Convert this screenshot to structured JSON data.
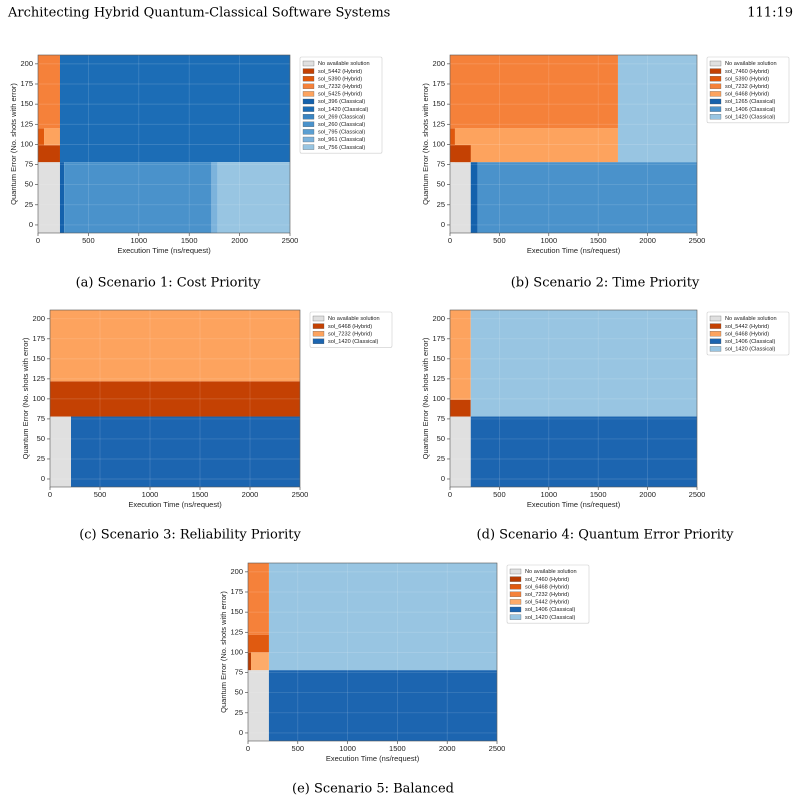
{
  "header": {
    "title": "Architecting Hybrid Quantum-Classical Software Systems",
    "page": "111:19"
  },
  "chart_data": [
    {
      "type": "region",
      "caption": "(a) Scenario 1: Cost Priority",
      "xlabel": "Execution Time (ns/request)",
      "ylabel": "Quantum Error (No. shots with error)",
      "xlim": [
        0,
        2500
      ],
      "ylim": [
        -10,
        211
      ],
      "xticks": [
        0,
        500,
        1000,
        1500,
        2000,
        2500
      ],
      "yticks": [
        0,
        25,
        50,
        75,
        100,
        125,
        150,
        175,
        200
      ],
      "grid": true,
      "series": [
        {
          "name": "No available solution",
          "color": "#e0e0e0"
        },
        {
          "name": "sol_5442 (Hybrid)",
          "color": "#c44103"
        },
        {
          "name": "sol_5390 (Hybrid)",
          "color": "#e0580c"
        },
        {
          "name": "sol_7232 (Hybrid)",
          "color": "#f5813a"
        },
        {
          "name": "sol_5425 (Hybrid)",
          "color": "#fda35e"
        },
        {
          "name": "sol_396 (Classical)",
          "color": "#1461ac"
        },
        {
          "name": "sol_1420 (Classical)",
          "color": "#1c6db6"
        },
        {
          "name": "sol_269 (Classical)",
          "color": "#3a85c3"
        },
        {
          "name": "sol_260 (Classical)",
          "color": "#4a92cb"
        },
        {
          "name": "sol_795 (Classical)",
          "color": "#5b9fd2"
        },
        {
          "name": "sol_961 (Classical)",
          "color": "#7cb3dc"
        },
        {
          "name": "sol_756 (Classical)",
          "color": "#98c5e2"
        }
      ],
      "regions": [
        {
          "series": 0,
          "x": [
            0,
            218
          ],
          "y": [
            -10,
            78
          ]
        },
        {
          "series": 1,
          "x": [
            0,
            218
          ],
          "y": [
            78,
            99
          ]
        },
        {
          "series": 2,
          "x": [
            0,
            60
          ],
          "y": [
            99,
            120
          ]
        },
        {
          "series": 4,
          "x": [
            60,
            218
          ],
          "y": [
            99,
            120
          ]
        },
        {
          "series": 3,
          "x": [
            0,
            218
          ],
          "y": [
            120,
            211
          ]
        },
        {
          "series": 6,
          "x": [
            218,
            2500
          ],
          "y": [
            78,
            211
          ]
        },
        {
          "series": 5,
          "x": [
            218,
            260
          ],
          "y": [
            -10,
            78
          ]
        },
        {
          "series": 8,
          "x": [
            260,
            1720
          ],
          "y": [
            -10,
            78
          ]
        },
        {
          "series": 10,
          "x": [
            1720,
            1780
          ],
          "y": [
            -10,
            78
          ]
        },
        {
          "series": 11,
          "x": [
            1780,
            2500
          ],
          "y": [
            -10,
            78
          ]
        }
      ]
    },
    {
      "type": "region",
      "caption": "(b) Scenario 2: Time Priority",
      "xlabel": "Execution Time (ns/request)",
      "ylabel": "Quantum Error (No. shots with error)",
      "xlim": [
        0,
        2500
      ],
      "ylim": [
        -10,
        211
      ],
      "xticks": [
        0,
        500,
        1000,
        1500,
        2000,
        2500
      ],
      "yticks": [
        0,
        25,
        50,
        75,
        100,
        125,
        150,
        175,
        200
      ],
      "grid": true,
      "series": [
        {
          "name": "No available solution",
          "color": "#e0e0e0"
        },
        {
          "name": "sol_7460 (Hybrid)",
          "color": "#c44103"
        },
        {
          "name": "sol_5390 (Hybrid)",
          "color": "#e0580c"
        },
        {
          "name": "sol_7232 (Hybrid)",
          "color": "#f5813a"
        },
        {
          "name": "sol_6468 (Hybrid)",
          "color": "#fda35e"
        },
        {
          "name": "sol_1265 (Classical)",
          "color": "#1461ac"
        },
        {
          "name": "sol_1406 (Classical)",
          "color": "#4a92cb"
        },
        {
          "name": "sol_1420 (Classical)",
          "color": "#98c5e2"
        }
      ],
      "regions": [
        {
          "series": 0,
          "x": [
            0,
            210
          ],
          "y": [
            -10,
            78
          ]
        },
        {
          "series": 5,
          "x": [
            210,
            280
          ],
          "y": [
            -10,
            78
          ]
        },
        {
          "series": 6,
          "x": [
            280,
            2500
          ],
          "y": [
            -10,
            78
          ]
        },
        {
          "series": 4,
          "x": [
            50,
            1700
          ],
          "y": [
            78,
            120
          ]
        },
        {
          "series": 1,
          "x": [
            0,
            210
          ],
          "y": [
            78,
            99
          ]
        },
        {
          "series": 2,
          "x": [
            0,
            50
          ],
          "y": [
            99,
            120
          ]
        },
        {
          "series": 3,
          "x": [
            0,
            1700
          ],
          "y": [
            120,
            211
          ]
        },
        {
          "series": 7,
          "x": [
            1700,
            2500
          ],
          "y": [
            78,
            211
          ]
        }
      ]
    },
    {
      "type": "region",
      "caption": "(c) Scenario 3: Reliability Priority",
      "xlabel": "Execution Time (ns/request)",
      "ylabel": "Quantum Error (No. shots with error)",
      "xlim": [
        0,
        2500
      ],
      "ylim": [
        -10,
        211
      ],
      "xticks": [
        0,
        500,
        1000,
        1500,
        2000,
        2500
      ],
      "yticks": [
        0,
        25,
        50,
        75,
        100,
        125,
        150,
        175,
        200
      ],
      "grid": true,
      "series": [
        {
          "name": "No available solution",
          "color": "#e0e0e0"
        },
        {
          "name": "sol_6468 (Hybrid)",
          "color": "#c44103"
        },
        {
          "name": "sol_7232 (Hybrid)",
          "color": "#fda35e"
        },
        {
          "name": "sol_1420 (Classical)",
          "color": "#1c65b0"
        }
      ],
      "regions": [
        {
          "series": 0,
          "x": [
            0,
            210
          ],
          "y": [
            -10,
            78
          ]
        },
        {
          "series": 3,
          "x": [
            210,
            2500
          ],
          "y": [
            -10,
            78
          ]
        },
        {
          "series": 1,
          "x": [
            0,
            2500
          ],
          "y": [
            78,
            122
          ]
        },
        {
          "series": 2,
          "x": [
            0,
            2500
          ],
          "y": [
            122,
            211
          ]
        }
      ]
    },
    {
      "type": "region",
      "caption": "(d) Scenario 4: Quantum Error Priority",
      "xlabel": "Execution Time (ns/request)",
      "ylabel": "Quantum Error (No. shots with error)",
      "xlim": [
        0,
        2500
      ],
      "ylim": [
        -10,
        211
      ],
      "xticks": [
        0,
        500,
        1000,
        1500,
        2000,
        2500
      ],
      "yticks": [
        0,
        25,
        50,
        75,
        100,
        125,
        150,
        175,
        200
      ],
      "grid": true,
      "series": [
        {
          "name": "No available solution",
          "color": "#e0e0e0"
        },
        {
          "name": "sol_5442 (Hybrid)",
          "color": "#c44103"
        },
        {
          "name": "sol_6468 (Hybrid)",
          "color": "#fda35e"
        },
        {
          "name": "sol_1406 (Classical)",
          "color": "#1c65b0"
        },
        {
          "name": "sol_1420 (Classical)",
          "color": "#98c5e2"
        }
      ],
      "regions": [
        {
          "series": 0,
          "x": [
            0,
            210
          ],
          "y": [
            -10,
            78
          ]
        },
        {
          "series": 3,
          "x": [
            210,
            2500
          ],
          "y": [
            -10,
            78
          ]
        },
        {
          "series": 1,
          "x": [
            0,
            210
          ],
          "y": [
            78,
            99
          ]
        },
        {
          "series": 2,
          "x": [
            0,
            210
          ],
          "y": [
            99,
            211
          ]
        },
        {
          "series": 4,
          "x": [
            210,
            2500
          ],
          "y": [
            78,
            211
          ]
        }
      ]
    },
    {
      "type": "region",
      "caption": "(e) Scenario 5: Balanced",
      "xlabel": "Execution Time (ns/request)",
      "ylabel": "Quantum Error (No. shots with error)",
      "xlim": [
        0,
        2500
      ],
      "ylim": [
        -10,
        211
      ],
      "xticks": [
        0,
        500,
        1000,
        1500,
        2000,
        2500
      ],
      "yticks": [
        0,
        25,
        50,
        75,
        100,
        125,
        150,
        175,
        200
      ],
      "grid": true,
      "series": [
        {
          "name": "No available solution",
          "color": "#e0e0e0"
        },
        {
          "name": "sol_7460 (Hybrid)",
          "color": "#b83c02"
        },
        {
          "name": "sol_6468 (Hybrid)",
          "color": "#e05a10"
        },
        {
          "name": "sol_7232 (Hybrid)",
          "color": "#f5813a"
        },
        {
          "name": "sol_5442 (Hybrid)",
          "color": "#fdab6a"
        },
        {
          "name": "sol_1406 (Classical)",
          "color": "#1c65b0"
        },
        {
          "name": "sol_1420 (Classical)",
          "color": "#98c5e2"
        }
      ],
      "regions": [
        {
          "series": 0,
          "x": [
            0,
            210
          ],
          "y": [
            -10,
            78
          ]
        },
        {
          "series": 5,
          "x": [
            210,
            2500
          ],
          "y": [
            -10,
            78
          ]
        },
        {
          "series": 6,
          "x": [
            210,
            2500
          ],
          "y": [
            78,
            211
          ]
        },
        {
          "series": 1,
          "x": [
            0,
            30
          ],
          "y": [
            78,
            100
          ]
        },
        {
          "series": 4,
          "x": [
            30,
            210
          ],
          "y": [
            78,
            100
          ]
        },
        {
          "series": 2,
          "x": [
            0,
            210
          ],
          "y": [
            100,
            122
          ]
        },
        {
          "series": 3,
          "x": [
            0,
            210
          ],
          "y": [
            122,
            211
          ]
        }
      ]
    }
  ]
}
